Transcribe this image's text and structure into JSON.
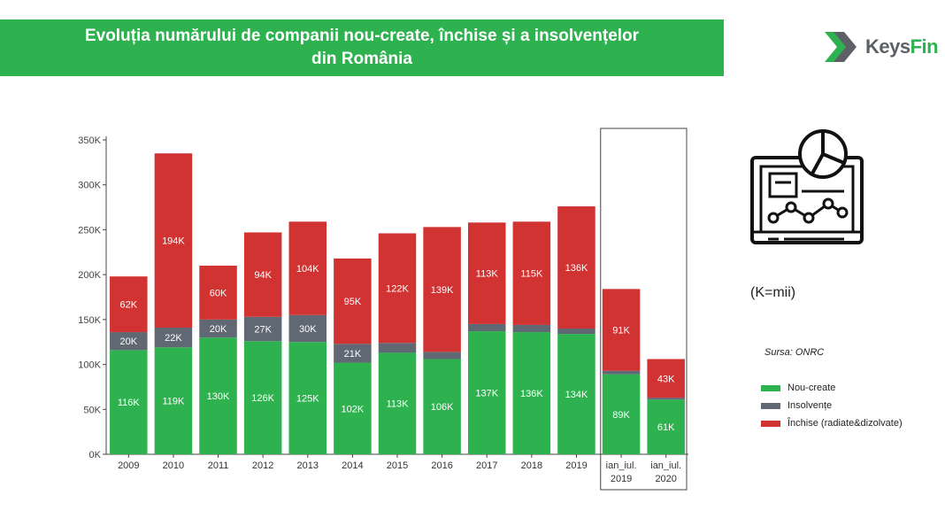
{
  "title": {
    "line1": "Evoluția numărului de companii nou-create, închise și a insolvențelor",
    "line2": "din România"
  },
  "brand": {
    "part1": "Keys",
    "part2": "Fin"
  },
  "unit_note": "(K=mii)",
  "source": "Sursa: ONRC",
  "colors": {
    "nou": "#2eb24f",
    "insolvente": "#5f6873",
    "inchise": "#d13333",
    "brand_green": "#2eb24f"
  },
  "icons": {
    "logo": "keysfin-chevron-icon",
    "report": "laptop-analytics-icon"
  },
  "chart_data": {
    "type": "bar",
    "stacked": true,
    "title": "",
    "xlabel": "",
    "ylabel": "",
    "ylim": [
      0,
      350000
    ],
    "y_ticks": [
      0,
      50000,
      100000,
      150000,
      200000,
      250000,
      300000,
      350000
    ],
    "y_tick_labels": [
      "0K",
      "50K",
      "100K",
      "150K",
      "200K",
      "250K",
      "300K",
      "350K"
    ],
    "categories": [
      [
        "2009"
      ],
      [
        "2010"
      ],
      [
        "2011"
      ],
      [
        "2012"
      ],
      [
        "2013"
      ],
      [
        "2014"
      ],
      [
        "2015"
      ],
      [
        "2016"
      ],
      [
        "2017"
      ],
      [
        "2018"
      ],
      [
        "2019"
      ],
      [
        "ian_iul.",
        "2019"
      ],
      [
        "ian_iul.",
        "2020"
      ]
    ],
    "highlighted_categories": [
      11,
      12
    ],
    "legend": "right",
    "series": [
      {
        "name": "Nou-create",
        "color": "#2eb24f",
        "values": [
          116,
          119,
          130,
          126,
          125,
          102,
          113,
          106,
          137,
          136,
          134,
          89,
          61
        ],
        "labels": [
          "116K",
          "119K",
          "130K",
          "126K",
          "125K",
          "102K",
          "113K",
          "106K",
          "137K",
          "136K",
          "134K",
          "89K",
          "61K"
        ]
      },
      {
        "name": "Insolvențe",
        "color": "#5f6873",
        "values": [
          20,
          22,
          20,
          27,
          30,
          21,
          11,
          8,
          8,
          8,
          6,
          4,
          2
        ],
        "labels": [
          "20K",
          "22K",
          "20K",
          "27K",
          "30K",
          "21K",
          "",
          "",
          "",
          "",
          "",
          "",
          ""
        ]
      },
      {
        "name": "Închise (radiate&dizolvate)",
        "color": "#d13333",
        "values": [
          62,
          194,
          60,
          94,
          104,
          95,
          122,
          139,
          113,
          115,
          136,
          91,
          43
        ],
        "labels": [
          "62K",
          "194K",
          "60K",
          "94K",
          "104K",
          "95K",
          "122K",
          "139K",
          "113K",
          "115K",
          "136K",
          "91K",
          "43K"
        ]
      }
    ]
  }
}
